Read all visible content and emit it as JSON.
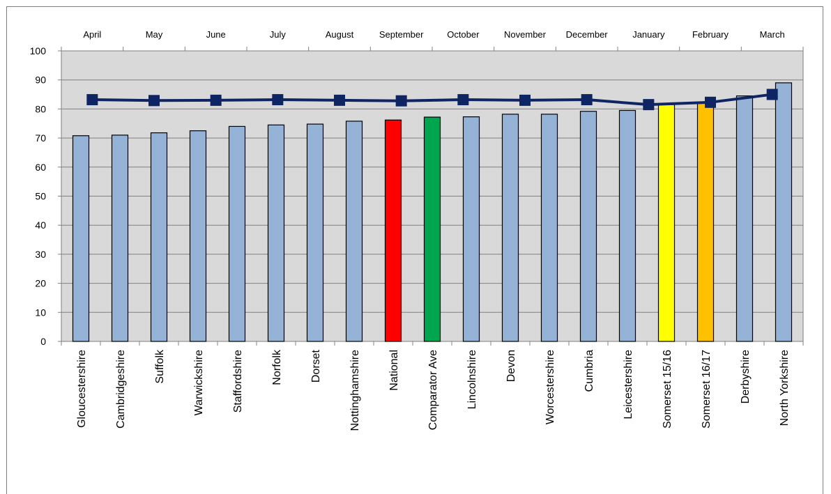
{
  "chart_data": {
    "type": "bar",
    "categories": [
      "Gloucestershire",
      "Cambridgeshire",
      "Suffolk",
      "Warwickshire",
      "Staffordshire",
      "Norfolk",
      "Dorset",
      "Nottinghamshire",
      "National",
      "Comparator Ave",
      "Lincolnshire",
      "Devon",
      "Worcestershire",
      "Cumbria",
      "Leicestershire",
      "Somerset 15/16",
      "Somerset 16/17",
      "Derbyshire",
      "North Yorkshire"
    ],
    "values": [
      70.8,
      71.0,
      71.8,
      72.5,
      74.0,
      74.5,
      74.8,
      75.8,
      76.2,
      77.2,
      77.3,
      78.2,
      78.2,
      79.2,
      79.5,
      81.5,
      82.0,
      84.5,
      89.0
    ],
    "bar_colors": [
      "#95b3d7",
      "#95b3d7",
      "#95b3d7",
      "#95b3d7",
      "#95b3d7",
      "#95b3d7",
      "#95b3d7",
      "#95b3d7",
      "#ff0000",
      "#00a550",
      "#95b3d7",
      "#95b3d7",
      "#95b3d7",
      "#95b3d7",
      "#95b3d7",
      "#ffff00",
      "#ffc000",
      "#95b3d7",
      "#95b3d7"
    ],
    "ylim": [
      0,
      100
    ],
    "yticks": [
      0,
      10,
      20,
      30,
      40,
      50,
      60,
      70,
      80,
      90,
      100
    ],
    "grid": true,
    "line_series": {
      "categories": [
        "April",
        "May",
        "June",
        "July",
        "August",
        "September",
        "October",
        "November",
        "December",
        "January",
        "February",
        "March"
      ],
      "values": [
        83.2,
        82.9,
        83.0,
        83.2,
        83.0,
        82.8,
        83.2,
        83.0,
        83.2,
        81.5,
        82.3,
        85.0
      ],
      "color": "#0f2463"
    },
    "colors": {
      "plot_background": "#d9d9d9",
      "gridline": "#808080",
      "bar_outline": "#000000"
    }
  }
}
